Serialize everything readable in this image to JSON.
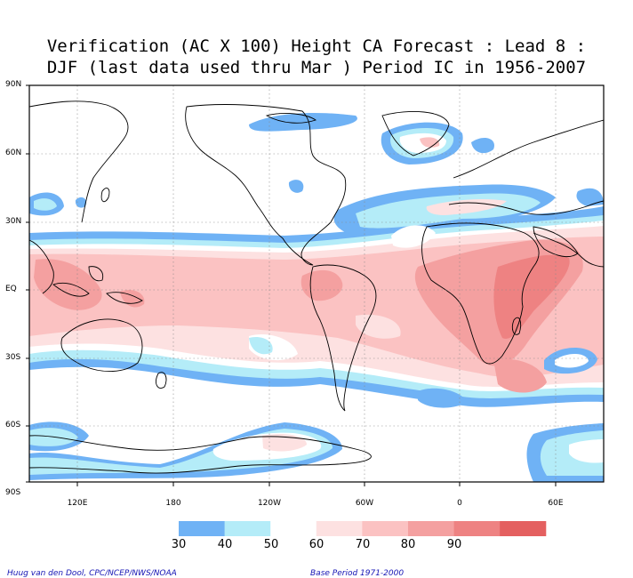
{
  "title": {
    "line1": "Verification (AC X 100) Height CA Forecast : Lead 8 :",
    "line2": "DJF (last data used thru Mar ) Period IC in 1956-2007"
  },
  "axes": {
    "lat_labels": [
      "90N",
      "60N",
      "30N",
      "EQ",
      "30S",
      "60S",
      "90S"
    ],
    "lon_labels": [
      "120E",
      "180",
      "120W",
      "60W",
      "0",
      "60E"
    ]
  },
  "colorbar": {
    "levels": [
      "30",
      "40",
      "50",
      "60",
      "70",
      "80",
      "90"
    ],
    "colors": [
      "#6fb2f5",
      "#b4ecf8",
      "#ffffff",
      "#fde1e1",
      "#fbc2c2",
      "#f4a0a0",
      "#ee8282",
      "#e46060"
    ]
  },
  "footer": {
    "credit": "Huug van den Dool, CPC/NCEP/NWS/NOAA",
    "base_period": "Base Period 1971-2000"
  }
}
